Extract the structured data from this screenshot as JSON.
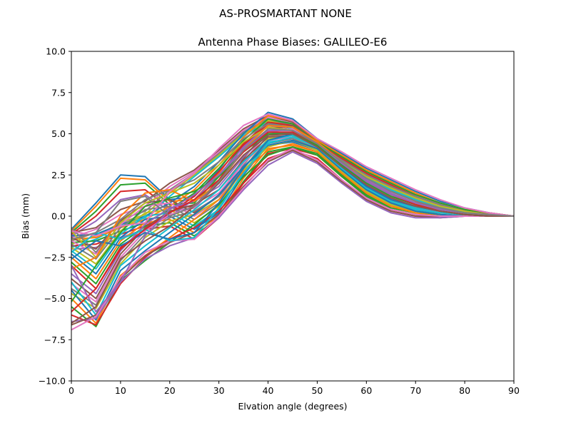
{
  "suptitle": "AS-PROSMARTANT  NONE",
  "chart_data": {
    "type": "line",
    "title": "Antenna Phase Biases: GALILEO-E6",
    "xlabel": "Elvation angle (degrees)",
    "ylabel": "Bias (mm)",
    "xlim": [
      0,
      90
    ],
    "ylim": [
      -10,
      10
    ],
    "xticks": [
      0,
      10,
      20,
      30,
      40,
      50,
      60,
      70,
      80,
      90
    ],
    "xtick_labels": [
      "0",
      "10",
      "20",
      "30",
      "40",
      "50",
      "60",
      "70",
      "80",
      "90"
    ],
    "yticks": [
      -10,
      -7.5,
      -5,
      -2.5,
      0,
      2.5,
      5,
      7.5,
      10
    ],
    "ytick_labels": [
      "−10.0",
      "−7.5",
      "−5.0",
      "−2.5",
      "0.0",
      "2.5",
      "5.0",
      "7.5",
      "10.0"
    ],
    "grid": false,
    "legend": "none",
    "x": [
      0,
      5,
      10,
      15,
      20,
      25,
      30,
      35,
      40,
      45,
      50,
      55,
      60,
      65,
      70,
      75,
      80,
      85,
      90
    ],
    "colors": [
      "#1f77b4",
      "#ff7f0e",
      "#2ca02c",
      "#d62728",
      "#9467bd",
      "#8c564b",
      "#e377c2",
      "#7f7f7f",
      "#bcbd22",
      "#17becf"
    ],
    "series": [
      {
        "values": [
          -0.8,
          0.8,
          2.5,
          2.4,
          1.0,
          1.2,
          2.8,
          4.8,
          6.0,
          5.6,
          4.7,
          3.7,
          2.6,
          1.8,
          1.1,
          0.6,
          0.3,
          0.1,
          0.0
        ]
      },
      {
        "values": [
          -0.9,
          0.6,
          2.3,
          2.2,
          0.9,
          1.0,
          2.6,
          4.6,
          5.8,
          5.5,
          4.6,
          3.6,
          2.5,
          1.7,
          1.0,
          0.5,
          0.3,
          0.1,
          0.0
        ]
      },
      {
        "values": [
          -1.0,
          0.3,
          1.9,
          2.0,
          0.7,
          0.8,
          2.4,
          4.4,
          5.7,
          5.4,
          4.5,
          3.5,
          2.4,
          1.6,
          0.9,
          0.5,
          0.2,
          0.1,
          0.0
        ]
      },
      {
        "values": [
          -1.1,
          0.0,
          1.5,
          1.6,
          0.5,
          0.6,
          2.2,
          4.3,
          5.6,
          5.3,
          4.4,
          3.4,
          2.3,
          1.5,
          0.9,
          0.4,
          0.2,
          0.1,
          0.0
        ]
      },
      {
        "values": [
          -1.2,
          -0.3,
          1.0,
          1.3,
          0.3,
          0.5,
          2.0,
          4.1,
          5.5,
          5.2,
          4.3,
          3.3,
          2.2,
          1.4,
          0.8,
          0.4,
          0.2,
          0.1,
          0.0
        ]
      },
      {
        "values": [
          -1.0,
          -0.7,
          0.4,
          0.9,
          2.0,
          2.8,
          4.0,
          5.3,
          6.1,
          5.7,
          4.6,
          3.6,
          2.7,
          2.0,
          1.3,
          0.8,
          0.4,
          0.2,
          0.0
        ]
      },
      {
        "values": [
          -1.3,
          -0.8,
          0.1,
          0.6,
          1.8,
          2.7,
          3.9,
          5.2,
          6.0,
          5.6,
          4.5,
          3.5,
          2.6,
          1.9,
          1.2,
          0.7,
          0.4,
          0.1,
          0.0
        ]
      },
      {
        "values": [
          -1.5,
          -1.0,
          -0.2,
          0.3,
          1.6,
          2.6,
          3.8,
          5.1,
          5.9,
          5.5,
          4.4,
          3.4,
          2.5,
          1.8,
          1.1,
          0.6,
          0.3,
          0.1,
          0.0
        ]
      },
      {
        "values": [
          -1.7,
          -1.2,
          -0.4,
          0.1,
          1.4,
          2.5,
          3.7,
          5.0,
          5.8,
          5.4,
          4.3,
          3.3,
          2.4,
          1.7,
          1.0,
          0.6,
          0.3,
          0.1,
          0.0
        ]
      },
      {
        "values": [
          -1.9,
          -1.4,
          -0.6,
          -0.1,
          1.2,
          2.4,
          3.6,
          4.9,
          5.7,
          5.3,
          4.2,
          3.2,
          2.3,
          1.6,
          1.0,
          0.5,
          0.3,
          0.1,
          0.0
        ]
      },
      {
        "values": [
          -1.2,
          -1.1,
          -0.5,
          0.0,
          0.8,
          1.8,
          3.3,
          5.0,
          6.3,
          5.9,
          4.7,
          3.8,
          2.9,
          2.2,
          1.5,
          0.9,
          0.5,
          0.2,
          0.0
        ]
      },
      {
        "values": [
          -1.4,
          -1.3,
          -0.7,
          -0.2,
          0.6,
          1.6,
          3.1,
          4.8,
          6.1,
          5.8,
          4.6,
          3.7,
          2.8,
          2.1,
          1.4,
          0.8,
          0.4,
          0.2,
          0.0
        ]
      },
      {
        "values": [
          -1.6,
          -1.5,
          -0.9,
          -0.4,
          0.4,
          1.4,
          2.9,
          4.6,
          5.9,
          5.6,
          4.5,
          3.6,
          2.7,
          2.0,
          1.3,
          0.8,
          0.4,
          0.1,
          0.0
        ]
      },
      {
        "values": [
          -1.8,
          -1.7,
          -1.1,
          -0.6,
          0.2,
          1.2,
          2.7,
          4.4,
          5.7,
          5.5,
          4.4,
          3.5,
          2.6,
          1.9,
          1.2,
          0.7,
          0.3,
          0.1,
          0.0
        ]
      },
      {
        "values": [
          -2.0,
          -1.9,
          -1.3,
          -0.8,
          0.0,
          1.0,
          2.5,
          4.2,
          5.5,
          5.4,
          4.3,
          3.4,
          2.5,
          1.8,
          1.1,
          0.6,
          0.3,
          0.1,
          0.0
        ]
      },
      {
        "values": [
          -1.3,
          -2.0,
          -0.3,
          0.8,
          1.0,
          0.2,
          1.2,
          3.5,
          5.3,
          5.5,
          4.5,
          3.2,
          2.0,
          1.2,
          0.7,
          0.4,
          0.2,
          0.1,
          0.0
        ]
      },
      {
        "values": [
          -1.5,
          -2.3,
          -0.5,
          0.6,
          0.8,
          0.0,
          1.0,
          3.3,
          5.1,
          5.3,
          4.4,
          3.1,
          1.9,
          1.1,
          0.6,
          0.3,
          0.2,
          0.1,
          0.0
        ]
      },
      {
        "values": [
          -1.7,
          -2.6,
          -0.7,
          0.4,
          0.6,
          -0.2,
          0.8,
          3.1,
          4.9,
          5.1,
          4.3,
          3.0,
          1.8,
          1.0,
          0.5,
          0.3,
          0.1,
          0.0,
          0.0
        ]
      },
      {
        "values": [
          -1.9,
          -2.9,
          -0.9,
          0.2,
          0.4,
          -0.4,
          0.6,
          2.9,
          4.7,
          4.9,
          4.2,
          2.9,
          1.7,
          0.9,
          0.5,
          0.3,
          0.1,
          0.0,
          0.0
        ]
      },
      {
        "values": [
          -2.1,
          -3.2,
          -1.1,
          0.0,
          0.2,
          -0.6,
          0.4,
          2.7,
          4.5,
          4.7,
          4.1,
          2.8,
          1.6,
          0.8,
          0.4,
          0.2,
          0.1,
          0.0,
          0.0
        ]
      },
      {
        "values": [
          -2.3,
          -3.5,
          -1.3,
          -0.2,
          0.0,
          -0.8,
          0.2,
          2.5,
          4.3,
          4.5,
          4.0,
          2.7,
          1.5,
          0.7,
          0.3,
          0.2,
          0.1,
          0.0,
          0.0
        ]
      },
      {
        "values": [
          -2.5,
          -3.8,
          -1.5,
          -0.4,
          -0.2,
          -1.0,
          0.0,
          2.3,
          4.1,
          4.3,
          3.9,
          2.6,
          1.4,
          0.6,
          0.3,
          0.1,
          0.0,
          0.0,
          0.0
        ]
      },
      {
        "values": [
          -2.8,
          -4.1,
          -1.7,
          -0.6,
          -0.4,
          -1.2,
          -0.1,
          2.1,
          3.9,
          4.2,
          3.8,
          2.5,
          1.3,
          0.5,
          0.2,
          0.1,
          0.0,
          0.0,
          0.0
        ]
      },
      {
        "values": [
          -3.0,
          -4.4,
          -1.9,
          -0.8,
          -0.6,
          -1.4,
          -0.1,
          2.0,
          3.8,
          4.1,
          3.7,
          2.4,
          1.2,
          0.4,
          0.1,
          0.0,
          0.0,
          0.0,
          0.0
        ]
      },
      {
        "values": [
          -3.5,
          -4.7,
          -2.1,
          -0.5,
          0.5,
          0.9,
          1.8,
          3.6,
          5.0,
          5.1,
          4.4,
          3.1,
          1.9,
          1.1,
          0.6,
          0.3,
          0.1,
          0.0,
          0.0
        ]
      },
      {
        "values": [
          -3.8,
          -5.0,
          -2.3,
          -0.7,
          0.3,
          0.7,
          1.6,
          3.4,
          4.8,
          4.9,
          4.3,
          3.0,
          1.8,
          1.0,
          0.5,
          0.3,
          0.1,
          0.0,
          0.0
        ]
      },
      {
        "values": [
          -4.1,
          -5.2,
          -2.5,
          -0.9,
          0.1,
          0.5,
          1.4,
          3.2,
          4.6,
          4.8,
          4.2,
          2.9,
          1.7,
          0.9,
          0.5,
          0.2,
          0.1,
          0.0,
          0.0
        ]
      },
      {
        "values": [
          -4.4,
          -5.4,
          -2.7,
          -1.1,
          -0.1,
          0.3,
          1.2,
          3.0,
          4.4,
          4.7,
          4.1,
          2.8,
          1.6,
          0.8,
          0.4,
          0.2,
          0.1,
          0.0,
          0.0
        ]
      },
      {
        "values": [
          -4.7,
          -5.6,
          -2.9,
          -1.3,
          -0.3,
          0.1,
          1.0,
          2.8,
          4.2,
          4.6,
          4.0,
          2.7,
          1.5,
          0.7,
          0.3,
          0.1,
          0.0,
          0.0,
          0.0
        ]
      },
      {
        "values": [
          -4.0,
          -6.0,
          -3.0,
          -1.8,
          -0.7,
          0.4,
          1.6,
          3.3,
          4.6,
          4.9,
          4.3,
          3.0,
          1.7,
          0.9,
          0.4,
          0.2,
          0.1,
          0.0,
          0.0
        ]
      },
      {
        "values": [
          -4.5,
          -6.3,
          -3.3,
          -2.1,
          -1.0,
          0.1,
          1.3,
          3.0,
          4.3,
          4.6,
          4.1,
          2.8,
          1.6,
          0.8,
          0.3,
          0.1,
          0.0,
          0.0,
          0.0
        ]
      },
      {
        "values": [
          -5.0,
          -6.5,
          -3.6,
          -2.4,
          -1.3,
          -0.2,
          1.0,
          2.7,
          4.0,
          4.4,
          3.9,
          2.6,
          1.4,
          0.6,
          0.2,
          0.0,
          0.0,
          0.0,
          0.0
        ]
      },
      {
        "values": [
          -5.5,
          -6.7,
          -3.9,
          -2.7,
          -1.6,
          -0.5,
          0.7,
          2.4,
          3.7,
          4.2,
          3.7,
          2.4,
          1.2,
          0.4,
          0.1,
          0.0,
          0.0,
          0.0,
          0.0
        ]
      },
      {
        "values": [
          -6.0,
          -6.6,
          -4.1,
          -2.5,
          -1.4,
          -0.7,
          0.3,
          2.0,
          3.5,
          4.0,
          3.5,
          2.2,
          1.0,
          0.3,
          0.0,
          -0.1,
          0.0,
          0.0,
          0.0
        ]
      },
      {
        "values": [
          -6.4,
          -6.2,
          -4.0,
          -2.6,
          -1.8,
          -1.3,
          -0.1,
          1.6,
          3.1,
          3.9,
          3.2,
          2.0,
          0.9,
          0.2,
          -0.1,
          -0.1,
          0.0,
          0.0,
          0.0
        ]
      },
      {
        "values": [
          -6.6,
          -6.0,
          -3.8,
          -2.4,
          -1.6,
          -1.0,
          0.1,
          1.8,
          3.3,
          4.0,
          3.3,
          2.1,
          1.0,
          0.3,
          0.0,
          0.0,
          0.0,
          0.0,
          0.0
        ]
      },
      {
        "values": [
          -6.9,
          -6.1,
          -3.7,
          -2.2,
          -1.5,
          -1.4,
          0.0,
          1.7,
          3.4,
          4.1,
          3.4,
          2.2,
          1.1,
          0.4,
          0.1,
          0.0,
          0.0,
          0.0,
          0.0
        ]
      },
      {
        "values": [
          -0.7,
          -2.2,
          -0.2,
          1.0,
          1.6,
          2.2,
          3.3,
          4.7,
          5.6,
          5.4,
          4.4,
          3.4,
          2.5,
          1.8,
          1.2,
          0.7,
          0.3,
          0.1,
          0.0
        ]
      },
      {
        "values": [
          -0.9,
          -2.5,
          -0.4,
          0.8,
          1.4,
          2.0,
          3.1,
          4.5,
          5.4,
          5.2,
          4.3,
          3.3,
          2.4,
          1.7,
          1.1,
          0.6,
          0.3,
          0.1,
          0.0
        ]
      },
      {
        "values": [
          -2.2,
          -1.0,
          -1.4,
          -0.8,
          -1.5,
          -1.3,
          0.5,
          2.6,
          4.4,
          4.8,
          4.2,
          2.9,
          1.7,
          0.9,
          0.5,
          0.3,
          0.1,
          0.0,
          0.0
        ]
      },
      {
        "values": [
          -2.6,
          -1.5,
          -1.8,
          -1.0,
          -1.4,
          -1.0,
          0.8,
          2.9,
          4.6,
          5.0,
          4.3,
          3.0,
          1.8,
          1.0,
          0.6,
          0.3,
          0.1,
          0.0,
          0.0
        ]
      },
      {
        "values": [
          -3.2,
          -2.5,
          0.0,
          1.4,
          1.6,
          0.9,
          2.0,
          4.0,
          5.5,
          5.4,
          4.5,
          3.3,
          2.1,
          1.3,
          0.8,
          0.4,
          0.2,
          0.1,
          0.0
        ]
      },
      {
        "values": [
          -5.2,
          -3.0,
          -1.0,
          0.6,
          1.1,
          1.5,
          2.4,
          3.9,
          5.0,
          5.0,
          4.3,
          3.1,
          2.0,
          1.2,
          0.7,
          0.3,
          0.1,
          0.0,
          0.0
        ]
      },
      {
        "values": [
          -5.8,
          -4.4,
          -2.0,
          -0.8,
          0.2,
          1.0,
          2.2,
          3.9,
          5.1,
          5.1,
          4.4,
          3.2,
          2.1,
          1.3,
          0.7,
          0.3,
          0.1,
          0.0,
          0.0
        ]
      },
      {
        "values": [
          -3.0,
          -5.8,
          -4.0,
          -1.2,
          0.4,
          1.3,
          2.5,
          4.0,
          5.2,
          5.2,
          4.4,
          3.2,
          2.1,
          1.3,
          0.8,
          0.4,
          0.2,
          0.1,
          0.0
        ]
      },
      {
        "values": [
          -6.5,
          -5.5,
          -2.6,
          -1.5,
          -0.6,
          0.6,
          2.0,
          3.7,
          4.9,
          5.0,
          4.2,
          3.0,
          1.9,
          1.1,
          0.6,
          0.3,
          0.1,
          0.0,
          0.0
        ]
      },
      {
        "values": [
          -0.9,
          -1.2,
          -0.6,
          -0.4,
          1.5,
          2.6,
          4.1,
          5.5,
          6.2,
          5.8,
          4.7,
          3.9,
          3.0,
          2.3,
          1.6,
          1.0,
          0.5,
          0.2,
          0.0
        ]
      },
      {
        "values": [
          -1.4,
          -1.0,
          0.9,
          1.2,
          0.0,
          0.6,
          2.1,
          4.0,
          5.3,
          5.2,
          4.4,
          3.3,
          2.3,
          1.5,
          0.9,
          0.5,
          0.2,
          0.1,
          0.0
        ]
      }
    ]
  }
}
